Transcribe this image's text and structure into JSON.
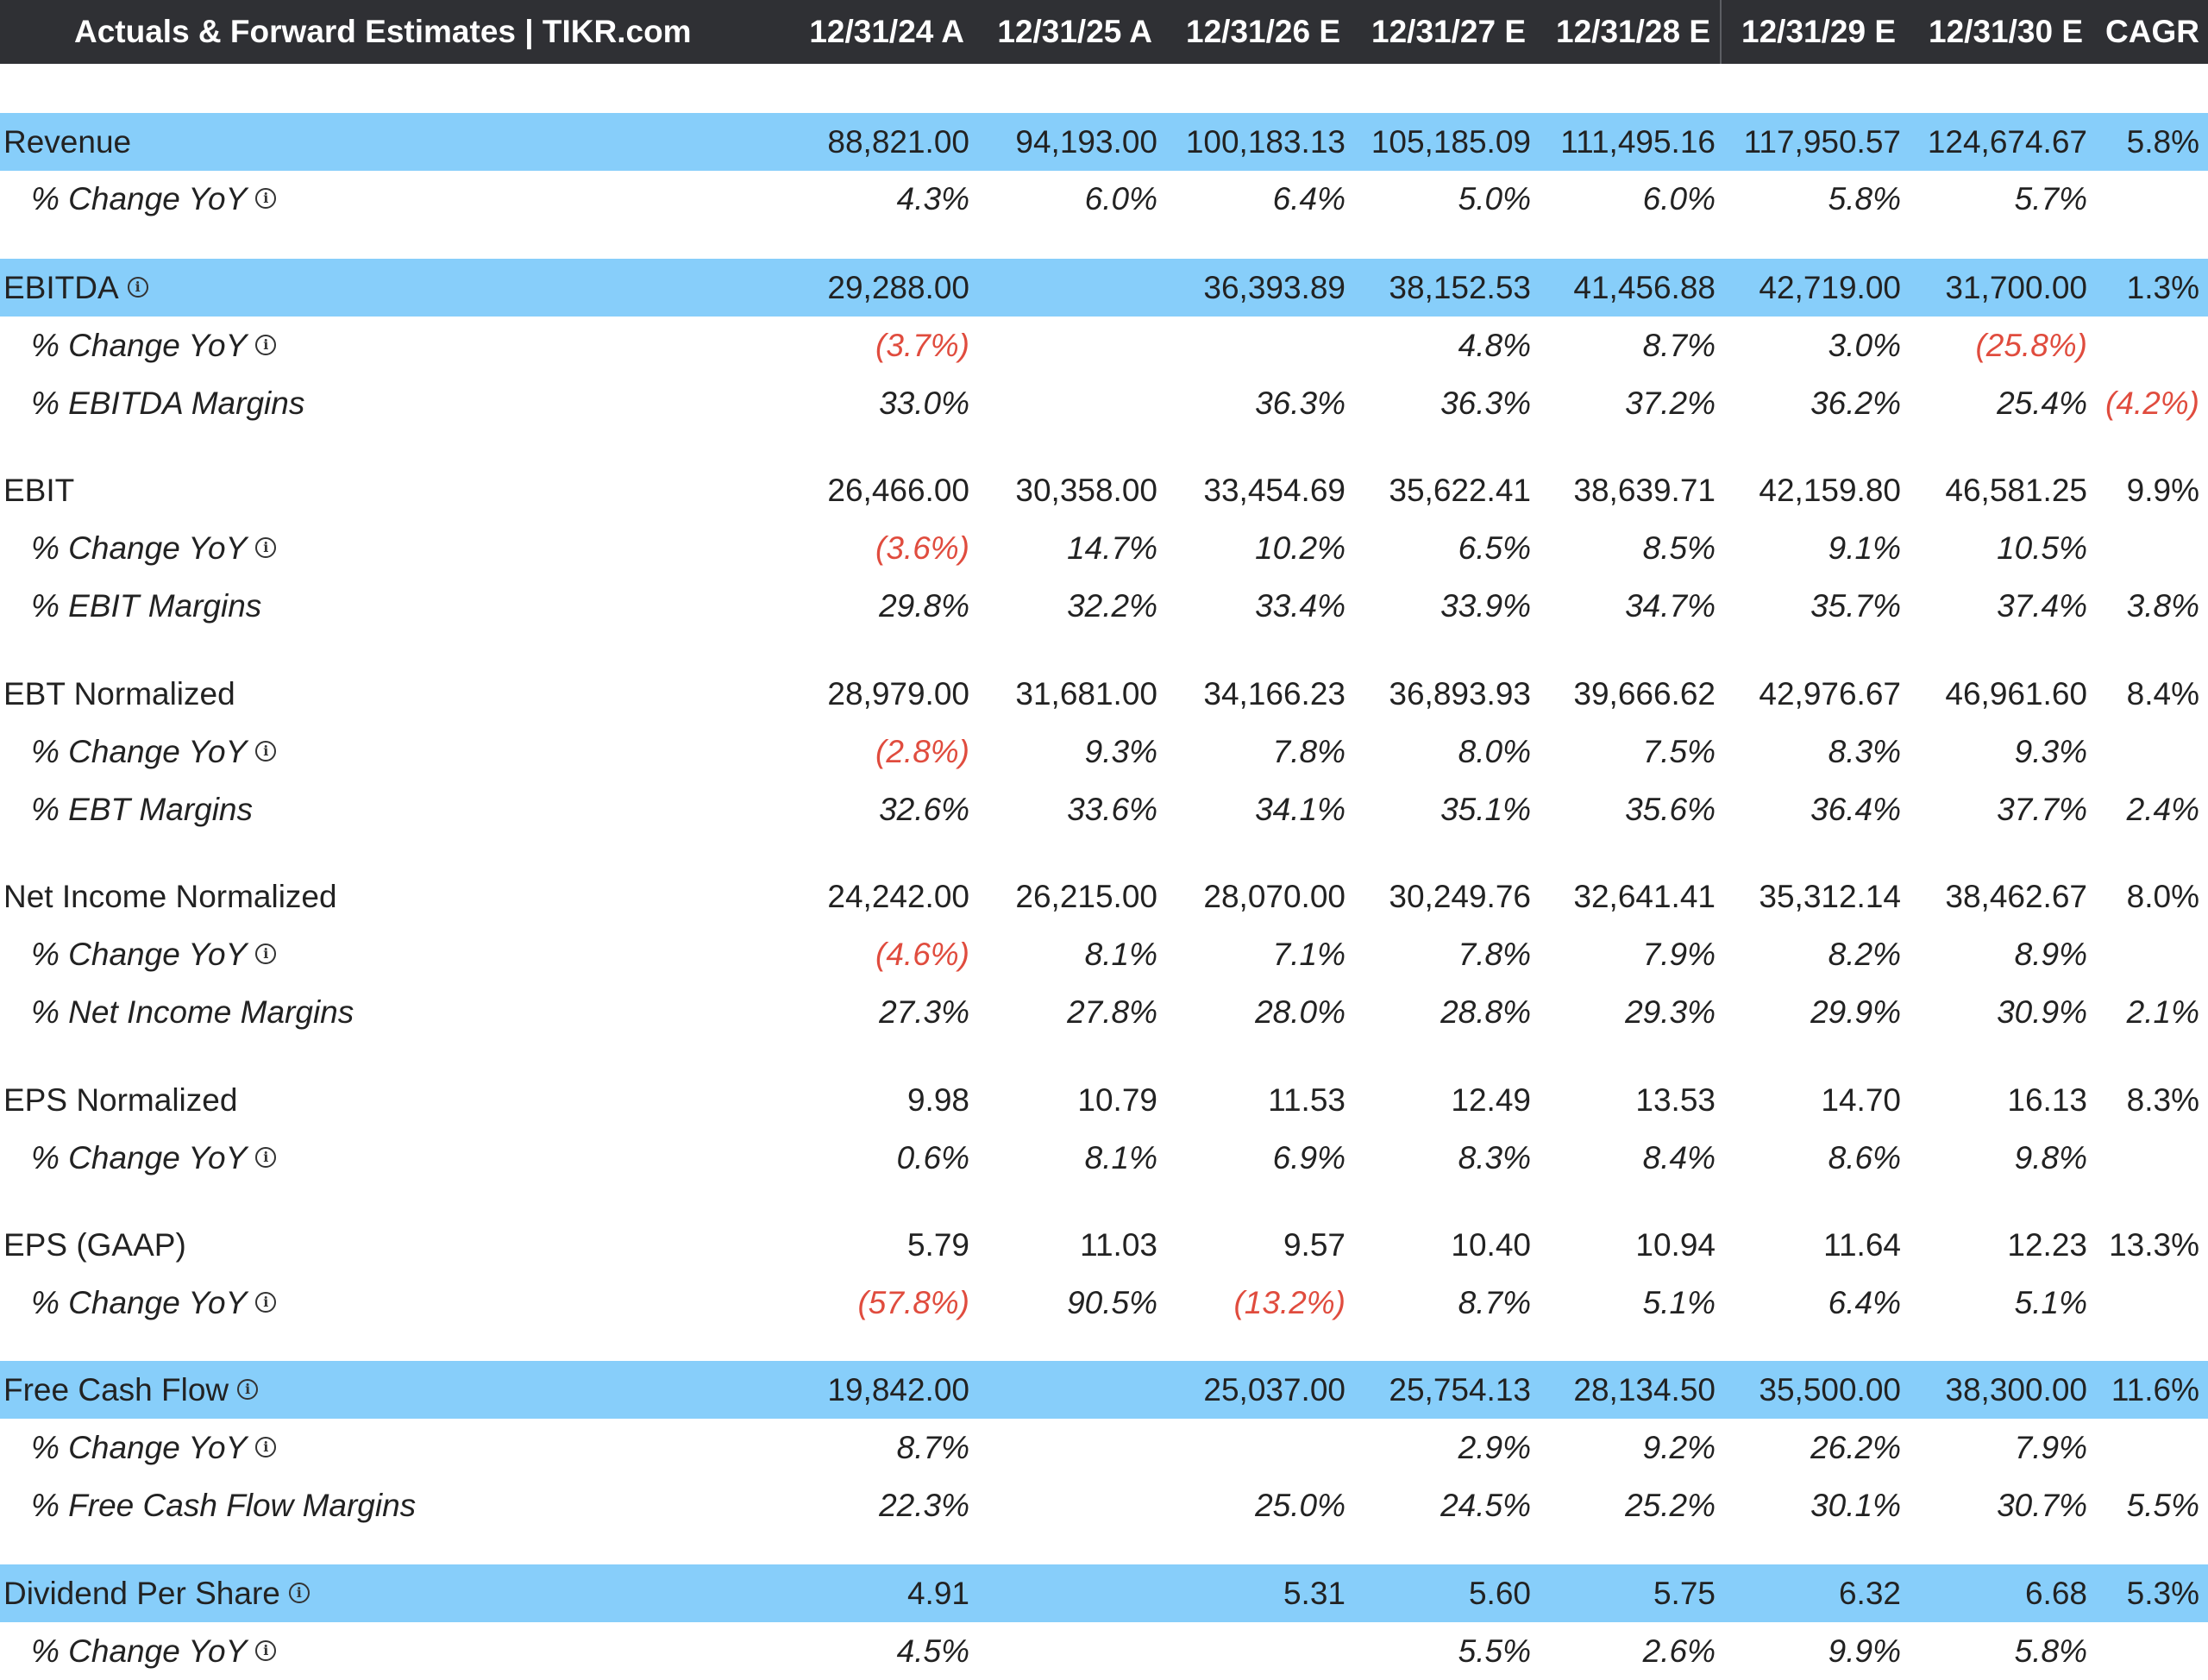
{
  "header": {
    "title": "Actuals & Forward Estimates | TIKR.com",
    "columns": [
      "12/31/24 A",
      "12/31/25 A",
      "12/31/26 E",
      "12/31/27 E",
      "12/31/28 E",
      "12/31/29 E",
      "12/31/30 E",
      "CAGR"
    ]
  },
  "colors": {
    "header_bg": "#2f3034",
    "highlight": "#87cefa",
    "negative": "#e04c3e"
  },
  "rows": [
    {
      "label": "Revenue",
      "type": "main",
      "highlight": true,
      "info": false,
      "values": [
        "88,821.00",
        "94,193.00",
        "100,183.13",
        "105,185.09",
        "111,495.16",
        "117,950.57",
        "124,674.67",
        "5.8%"
      ]
    },
    {
      "label": "% Change YoY",
      "type": "sub",
      "info": true,
      "values": [
        "4.3%",
        "6.0%",
        "6.4%",
        "5.0%",
        "6.0%",
        "5.8%",
        "5.7%",
        ""
      ]
    },
    {
      "label": "EBITDA",
      "type": "main",
      "highlight": true,
      "info": true,
      "values": [
        "29,288.00",
        "",
        "36,393.89",
        "38,152.53",
        "41,456.88",
        "42,719.00",
        "31,700.00",
        "1.3%"
      ]
    },
    {
      "label": "% Change YoY",
      "type": "sub",
      "info": true,
      "values": [
        "(3.7%)",
        "",
        "",
        "4.8%",
        "8.7%",
        "3.0%",
        "(25.8%)",
        ""
      ]
    },
    {
      "label": "% EBITDA Margins",
      "type": "sub",
      "info": false,
      "values": [
        "33.0%",
        "",
        "36.3%",
        "36.3%",
        "37.2%",
        "36.2%",
        "25.4%",
        "(4.2%)"
      ]
    },
    {
      "label": "EBIT",
      "type": "main",
      "highlight": false,
      "info": false,
      "values": [
        "26,466.00",
        "30,358.00",
        "33,454.69",
        "35,622.41",
        "38,639.71",
        "42,159.80",
        "46,581.25",
        "9.9%"
      ]
    },
    {
      "label": "% Change YoY",
      "type": "sub",
      "info": true,
      "values": [
        "(3.6%)",
        "14.7%",
        "10.2%",
        "6.5%",
        "8.5%",
        "9.1%",
        "10.5%",
        ""
      ]
    },
    {
      "label": "% EBIT Margins",
      "type": "sub",
      "info": false,
      "values": [
        "29.8%",
        "32.2%",
        "33.4%",
        "33.9%",
        "34.7%",
        "35.7%",
        "37.4%",
        "3.8%"
      ]
    },
    {
      "label": "EBT Normalized",
      "type": "main",
      "highlight": false,
      "info": false,
      "values": [
        "28,979.00",
        "31,681.00",
        "34,166.23",
        "36,893.93",
        "39,666.62",
        "42,976.67",
        "46,961.60",
        "8.4%"
      ]
    },
    {
      "label": "% Change YoY",
      "type": "sub",
      "info": true,
      "values": [
        "(2.8%)",
        "9.3%",
        "7.8%",
        "8.0%",
        "7.5%",
        "8.3%",
        "9.3%",
        ""
      ]
    },
    {
      "label": "% EBT Margins",
      "type": "sub",
      "info": false,
      "values": [
        "32.6%",
        "33.6%",
        "34.1%",
        "35.1%",
        "35.6%",
        "36.4%",
        "37.7%",
        "2.4%"
      ]
    },
    {
      "label": "Net Income Normalized",
      "type": "main",
      "highlight": false,
      "info": false,
      "values": [
        "24,242.00",
        "26,215.00",
        "28,070.00",
        "30,249.76",
        "32,641.41",
        "35,312.14",
        "38,462.67",
        "8.0%"
      ]
    },
    {
      "label": "% Change YoY",
      "type": "sub",
      "info": true,
      "values": [
        "(4.6%)",
        "8.1%",
        "7.1%",
        "7.8%",
        "7.9%",
        "8.2%",
        "8.9%",
        ""
      ]
    },
    {
      "label": "% Net Income Margins",
      "type": "sub",
      "info": false,
      "values": [
        "27.3%",
        "27.8%",
        "28.0%",
        "28.8%",
        "29.3%",
        "29.9%",
        "30.9%",
        "2.1%"
      ]
    },
    {
      "label": "EPS Normalized",
      "type": "main",
      "highlight": false,
      "info": false,
      "values": [
        "9.98",
        "10.79",
        "11.53",
        "12.49",
        "13.53",
        "14.70",
        "16.13",
        "8.3%"
      ]
    },
    {
      "label": "% Change YoY",
      "type": "sub",
      "info": true,
      "values": [
        "0.6%",
        "8.1%",
        "6.9%",
        "8.3%",
        "8.4%",
        "8.6%",
        "9.8%",
        ""
      ]
    },
    {
      "label": "EPS (GAAP)",
      "type": "main",
      "highlight": false,
      "info": false,
      "values": [
        "5.79",
        "11.03",
        "9.57",
        "10.40",
        "10.94",
        "11.64",
        "12.23",
        "13.3%"
      ]
    },
    {
      "label": "% Change YoY",
      "type": "sub",
      "info": true,
      "values": [
        "(57.8%)",
        "90.5%",
        "(13.2%)",
        "8.7%",
        "5.1%",
        "6.4%",
        "5.1%",
        ""
      ]
    },
    {
      "label": "Free Cash Flow",
      "type": "main",
      "highlight": true,
      "info": true,
      "values": [
        "19,842.00",
        "",
        "25,037.00",
        "25,754.13",
        "28,134.50",
        "35,500.00",
        "38,300.00",
        "11.6%"
      ]
    },
    {
      "label": "% Change YoY",
      "type": "sub",
      "info": true,
      "values": [
        "8.7%",
        "",
        "",
        "2.9%",
        "9.2%",
        "26.2%",
        "7.9%",
        ""
      ]
    },
    {
      "label": "% Free Cash Flow Margins",
      "type": "sub",
      "info": false,
      "values": [
        "22.3%",
        "",
        "25.0%",
        "24.5%",
        "25.2%",
        "30.1%",
        "30.7%",
        "5.5%"
      ]
    },
    {
      "label": "Dividend Per Share",
      "type": "main",
      "highlight": true,
      "info": true,
      "values": [
        "4.91",
        "",
        "5.31",
        "5.60",
        "5.75",
        "6.32",
        "6.68",
        "5.3%"
      ]
    },
    {
      "label": "% Change YoY",
      "type": "sub",
      "info": true,
      "values": [
        "4.5%",
        "",
        "",
        "5.5%",
        "2.6%",
        "9.9%",
        "5.8%",
        ""
      ]
    }
  ]
}
